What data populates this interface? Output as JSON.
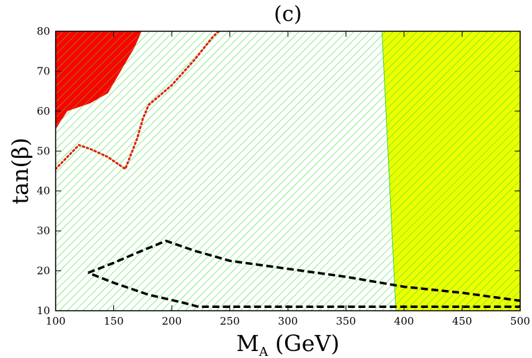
{
  "chart_data": {
    "type": "area",
    "title": "(c)",
    "xlabel_main": "M",
    "xlabel_sub": "A",
    "xlabel_unit": " (GeV)",
    "ylabel": "tan(β)",
    "xlim": [
      100,
      500
    ],
    "ylim": [
      10,
      80
    ],
    "x_ticks": [
      100,
      150,
      200,
      250,
      300,
      350,
      400,
      450,
      500
    ],
    "y_ticks": [
      10,
      20,
      30,
      40,
      50,
      60,
      70,
      80
    ],
    "colors": {
      "red_region": "#ff0000",
      "green_hatch": "#33dd33",
      "yellow_region": "#eeff00",
      "dotted_line": "#dd2200",
      "dashed_line": "#000000"
    },
    "regions": [
      {
        "fill": "red",
        "points": [
          [
            100,
            55.5
          ],
          [
            100,
            80
          ],
          [
            174,
            80
          ],
          [
            168,
            76
          ],
          [
            160,
            72
          ],
          [
            152,
            68
          ],
          [
            145,
            64.5
          ],
          [
            130,
            62
          ],
          [
            110,
            60
          ]
        ]
      },
      {
        "fill": "green-hatch",
        "points": [
          [
            100,
            10
          ],
          [
            100,
            80
          ],
          [
            500,
            80
          ],
          [
            500,
            10
          ]
        ]
      },
      {
        "fill": "yellow-hatch",
        "points": [
          [
            381,
            80
          ],
          [
            500,
            80
          ],
          [
            500,
            10
          ],
          [
            393,
            10
          ]
        ]
      }
    ],
    "lines": [
      {
        "style": "dotted",
        "points": [
          [
            100,
            45.5
          ],
          [
            110,
            48.5
          ],
          [
            120,
            51.5
          ],
          [
            130,
            50.5
          ],
          [
            145,
            48.5
          ],
          [
            160,
            45.5
          ],
          [
            170,
            53
          ],
          [
            175,
            58
          ],
          [
            180,
            61.5
          ],
          [
            200,
            66.5
          ],
          [
            220,
            73
          ],
          [
            235,
            78.5
          ],
          [
            242,
            80.5
          ]
        ]
      },
      {
        "style": "dashed",
        "points": [
          [
            128,
            19.5
          ],
          [
            150,
            22
          ],
          [
            170,
            24.5
          ],
          [
            195,
            27.5
          ],
          [
            220,
            25
          ],
          [
            250,
            22.5
          ],
          [
            300,
            20.5
          ],
          [
            350,
            18.5
          ],
          [
            400,
            16
          ],
          [
            450,
            14.5
          ],
          [
            500,
            12.5
          ],
          [
            500,
            11
          ],
          [
            450,
            11
          ],
          [
            400,
            11
          ],
          [
            350,
            11
          ],
          [
            300,
            11
          ],
          [
            250,
            11
          ],
          [
            223,
            11
          ],
          [
            210,
            12
          ],
          [
            180,
            14
          ],
          [
            150,
            17
          ],
          [
            128,
            19.5
          ]
        ]
      }
    ]
  }
}
